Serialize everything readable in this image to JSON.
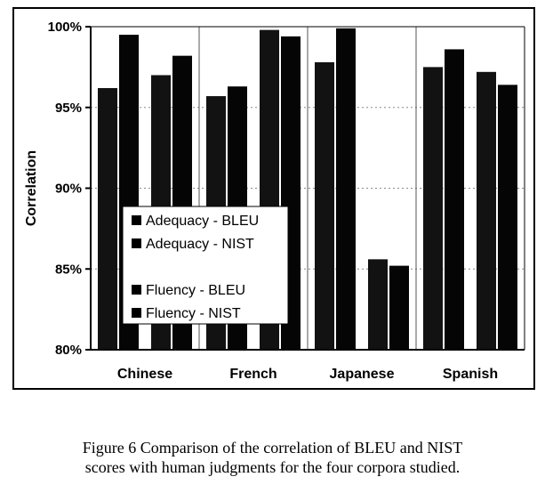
{
  "chart_data": {
    "type": "bar",
    "title": "",
    "xlabel": "",
    "ylabel": "Correlation",
    "ylim": [
      80,
      100
    ],
    "yticks": [
      "80%",
      "85%",
      "90%",
      "95%",
      "100%"
    ],
    "categories": [
      "Chinese",
      "French",
      "Japanese",
      "Spanish"
    ],
    "grid": true,
    "legend_position": "center-left",
    "series": [
      {
        "name": "Adequacy - BLEU",
        "values": [
          96.2,
          95.7,
          97.8,
          97.5
        ]
      },
      {
        "name": "Adequacy - NIST",
        "values": [
          99.5,
          96.3,
          99.9,
          98.6
        ]
      },
      {
        "name": "Fluency - BLEU",
        "values": [
          97.0,
          99.8,
          85.6,
          97.2
        ]
      },
      {
        "name": "Fluency - NIST",
        "values": [
          98.2,
          99.4,
          85.2,
          96.4
        ]
      }
    ]
  },
  "caption": {
    "line1": "Figure 6 Comparison of the correlation of BLEU and NIST",
    "line2": "scores with human judgments for the four corpora studied."
  }
}
